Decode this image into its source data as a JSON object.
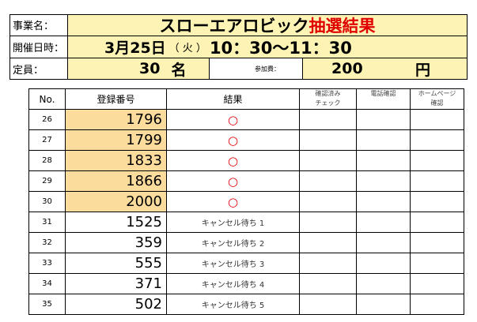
{
  "header": {
    "row1": {
      "label": "事業名：",
      "title_black": "スローエアロビック",
      "title_red": "抽選結果"
    },
    "row2": {
      "label": "開催日時：",
      "date": "3月25日",
      "weekday": "（ 火 ）",
      "time": "10：30〜11：30"
    },
    "row3": {
      "label": "定員：",
      "capacity": "30",
      "capacity_unit": "名",
      "fee_label": "参加費：",
      "fee": "200",
      "fee_unit": "円"
    }
  },
  "table": {
    "headers": {
      "no": "No.",
      "reg": "登録番号",
      "result": "結果",
      "confirm": "確認済み\nチェック",
      "phone": "電話確認",
      "homepage": "ホームページ\n確認"
    },
    "rows": [
      {
        "no": "26",
        "reg": "1796",
        "result": "○",
        "winner": true
      },
      {
        "no": "27",
        "reg": "1799",
        "result": "○",
        "winner": true
      },
      {
        "no": "28",
        "reg": "1833",
        "result": "○",
        "winner": true
      },
      {
        "no": "29",
        "reg": "1866",
        "result": "○",
        "winner": true
      },
      {
        "no": "30",
        "reg": "2000",
        "result": "○",
        "winner": true
      },
      {
        "no": "31",
        "reg": "1525",
        "result": "キャンセル待ち 1",
        "winner": false
      },
      {
        "no": "32",
        "reg": "359",
        "result": "キャンセル待ち 2",
        "winner": false
      },
      {
        "no": "33",
        "reg": "555",
        "result": "キャンセル待ち 3",
        "winner": false
      },
      {
        "no": "34",
        "reg": "371",
        "result": "キャンセル待ち 4",
        "winner": false
      },
      {
        "no": "35",
        "reg": "502",
        "result": "キャンセル待ち 5",
        "winner": false
      }
    ]
  },
  "colors": {
    "title_fill": "#fcf3b4",
    "winner_fill": "#fbdc9c",
    "red": "#e00000"
  }
}
